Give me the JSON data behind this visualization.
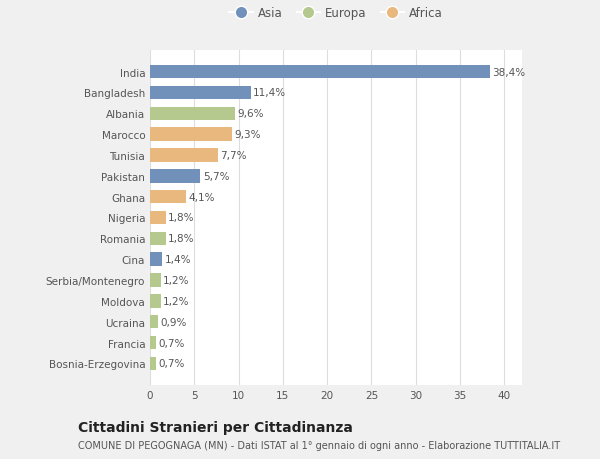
{
  "categories": [
    "India",
    "Bangladesh",
    "Albania",
    "Marocco",
    "Tunisia",
    "Pakistan",
    "Ghana",
    "Nigeria",
    "Romania",
    "Cina",
    "Serbia/Montenegro",
    "Moldova",
    "Ucraina",
    "Francia",
    "Bosnia-Erzegovina"
  ],
  "values": [
    38.4,
    11.4,
    9.6,
    9.3,
    7.7,
    5.7,
    4.1,
    1.8,
    1.8,
    1.4,
    1.2,
    1.2,
    0.9,
    0.7,
    0.7
  ],
  "labels": [
    "38,4%",
    "11,4%",
    "9,6%",
    "9,3%",
    "7,7%",
    "5,7%",
    "4,1%",
    "1,8%",
    "1,8%",
    "1,4%",
    "1,2%",
    "1,2%",
    "0,9%",
    "0,7%",
    "0,7%"
  ],
  "colors": [
    "#7191bb",
    "#7191bb",
    "#b5c98e",
    "#e8b87e",
    "#e8b87e",
    "#7191bb",
    "#e8b87e",
    "#e8b87e",
    "#b5c98e",
    "#7191bb",
    "#b5c98e",
    "#b5c98e",
    "#b5c98e",
    "#b5c98e",
    "#b5c98e"
  ],
  "legend_labels": [
    "Asia",
    "Europa",
    "Africa"
  ],
  "legend_colors": [
    "#7191bb",
    "#b5c98e",
    "#e8b87e"
  ],
  "title": "Cittadini Stranieri per Cittadinanza",
  "subtitle": "COMUNE DI PEGOGNAGA (MN) - Dati ISTAT al 1° gennaio di ogni anno - Elaborazione TUTTITALIA.IT",
  "xlim": [
    0,
    42
  ],
  "xticks": [
    0,
    5,
    10,
    15,
    20,
    25,
    30,
    35,
    40
  ],
  "background_color": "#f0f0f0",
  "plot_bg_color": "#ffffff",
  "grid_color": "#dddddd",
  "label_fontsize": 7.5,
  "tick_fontsize": 7.5,
  "title_fontsize": 10,
  "subtitle_fontsize": 7,
  "bar_height": 0.65
}
